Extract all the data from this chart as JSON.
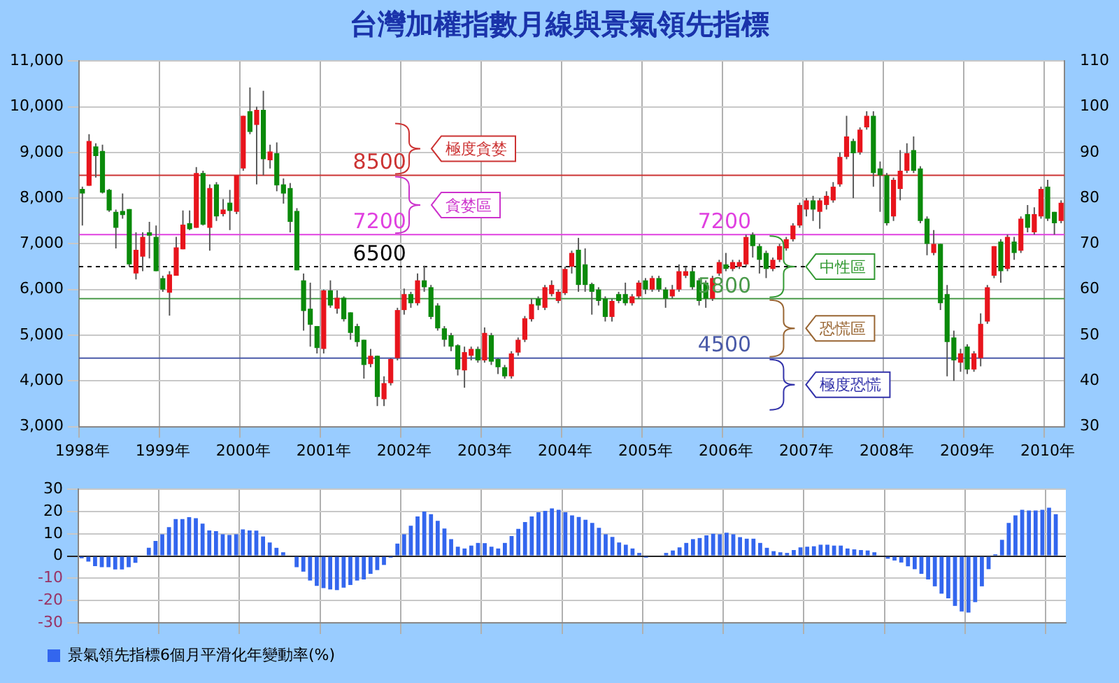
{
  "chart_data": [
    {
      "type": "candlestick",
      "title": "台灣加權指數月線與景氣領先指標",
      "categories": [
        "1998年",
        null,
        null,
        null,
        null,
        null,
        null,
        null,
        null,
        null,
        null,
        null,
        "1999年",
        null,
        null,
        null,
        null,
        null,
        null,
        null,
        null,
        null,
        null,
        null,
        "2000年",
        null,
        null,
        null,
        null,
        null,
        null,
        null,
        null,
        null,
        null,
        null,
        "2001年",
        null,
        null,
        null,
        null,
        null,
        null,
        null,
        null,
        null,
        null,
        null,
        "2002年",
        null,
        null,
        null,
        null,
        null,
        null,
        null,
        null,
        null,
        null,
        null,
        "2003年",
        null,
        null,
        null,
        null,
        null,
        null,
        null,
        null,
        null,
        null,
        null,
        "2004年",
        null,
        null,
        null,
        null,
        null,
        null,
        null,
        null,
        null,
        null,
        null,
        "2005年",
        null,
        null,
        null,
        null,
        null,
        null,
        null,
        null,
        null,
        null,
        null,
        "2006年",
        null,
        null,
        null,
        null,
        null,
        null,
        null,
        null,
        null,
        null,
        null,
        "2007年",
        null,
        null,
        null,
        null,
        null,
        null,
        null,
        null,
        null,
        null,
        null,
        "2008年",
        null,
        null,
        null,
        null,
        null,
        null,
        null,
        null,
        null,
        null,
        null,
        "2009年",
        null,
        null,
        null,
        null,
        null,
        null,
        null,
        null,
        null,
        null,
        null,
        "2010年",
        null,
        null
      ],
      "ohlc": [
        [
          8200,
          8250,
          7400,
          8100
        ],
        [
          8270,
          9400,
          8270,
          9250
        ],
        [
          9130,
          9200,
          8450,
          8920
        ],
        [
          9030,
          9170,
          8100,
          8120
        ],
        [
          8180,
          8200,
          7700,
          7730
        ],
        [
          7700,
          7750,
          6900,
          7350
        ],
        [
          7720,
          8100,
          7550,
          7630
        ],
        [
          7760,
          7760,
          6500,
          6550
        ],
        [
          6350,
          7250,
          6220,
          6870
        ],
        [
          6720,
          7250,
          6400,
          7150
        ],
        [
          7250,
          7480,
          6680,
          7180
        ],
        [
          7150,
          7400,
          6400,
          6400
        ],
        [
          6250,
          6300,
          5950,
          6000
        ],
        [
          5930,
          6400,
          5430,
          6330
        ],
        [
          6300,
          7150,
          6300,
          6920
        ],
        [
          6880,
          7730,
          6880,
          7420
        ],
        [
          7450,
          7730,
          7300,
          7320
        ],
        [
          7350,
          8680,
          7350,
          8550
        ],
        [
          8550,
          8600,
          7400,
          7420
        ],
        [
          7350,
          8300,
          6850,
          8220
        ],
        [
          8300,
          8350,
          7500,
          7600
        ],
        [
          7650,
          7980,
          7600,
          7750
        ],
        [
          7900,
          8180,
          7300,
          7720
        ],
        [
          7700,
          8500,
          7650,
          8500
        ],
        [
          8650,
          9800,
          8600,
          9800
        ],
        [
          9900,
          10420,
          9400,
          9450
        ],
        [
          9600,
          10000,
          8300,
          9930
        ],
        [
          9930,
          10350,
          8500,
          8850
        ],
        [
          8830,
          9170,
          8650,
          9020
        ],
        [
          8980,
          9220,
          8150,
          8280
        ],
        [
          8300,
          8430,
          7880,
          8100
        ],
        [
          8220,
          8330,
          7250,
          7480
        ],
        [
          7720,
          7780,
          6420,
          6420
        ],
        [
          6200,
          6350,
          5100,
          5530
        ],
        [
          5580,
          6150,
          4750,
          5230
        ],
        [
          5200,
          5200,
          4600,
          4720
        ],
        [
          4700,
          6000,
          4600,
          5980
        ],
        [
          5980,
          6200,
          5600,
          5650
        ],
        [
          5580,
          5980,
          5470,
          5820
        ],
        [
          5820,
          5850,
          5300,
          5350
        ],
        [
          5500,
          5500,
          4900,
          5050
        ],
        [
          5200,
          5250,
          4750,
          4850
        ],
        [
          4900,
          4900,
          4050,
          4350
        ],
        [
          4370,
          4700,
          4300,
          4550
        ],
        [
          4550,
          4550,
          3450,
          3650
        ],
        [
          3600,
          4100,
          3450,
          3950
        ],
        [
          3950,
          4500,
          3900,
          4480
        ],
        [
          4500,
          5600,
          4450,
          5550
        ],
        [
          5550,
          6020,
          5450,
          5900
        ],
        [
          5900,
          5950,
          5600,
          5700
        ],
        [
          5700,
          6350,
          5650,
          6200
        ],
        [
          6200,
          6520,
          5950,
          6050
        ],
        [
          6050,
          6100,
          5350,
          5400
        ],
        [
          5650,
          5700,
          5100,
          5150
        ],
        [
          5150,
          5200,
          4750,
          4900
        ],
        [
          5000,
          5050,
          4650,
          4750
        ],
        [
          4780,
          4800,
          4120,
          4250
        ],
        [
          4230,
          4750,
          3850,
          4630
        ],
        [
          4550,
          4750,
          4450,
          4700
        ],
        [
          4700,
          4750,
          4400,
          4450
        ],
        [
          4450,
          5170,
          4400,
          5050
        ],
        [
          5000,
          5050,
          4350,
          4420
        ],
        [
          4480,
          4500,
          4150,
          4300
        ],
        [
          4300,
          4350,
          4050,
          4100
        ],
        [
          4100,
          4650,
          4050,
          4600
        ],
        [
          4620,
          4950,
          4550,
          4900
        ],
        [
          4900,
          5420,
          4850,
          5370
        ],
        [
          5350,
          5800,
          5300,
          5680
        ],
        [
          5800,
          5850,
          5550,
          5650
        ],
        [
          5600,
          6100,
          5550,
          6050
        ],
        [
          5900,
          6200,
          5850,
          6100
        ],
        [
          5750,
          6000,
          5700,
          5950
        ],
        [
          5920,
          6500,
          5880,
          6450
        ],
        [
          6500,
          6850,
          6350,
          6800
        ],
        [
          6870,
          7130,
          5950,
          6100
        ],
        [
          6550,
          6900,
          5950,
          6100
        ],
        [
          6120,
          6150,
          5450,
          5950
        ],
        [
          6000,
          6050,
          5650,
          5750
        ],
        [
          5800,
          5850,
          5300,
          5400
        ],
        [
          5400,
          5800,
          5300,
          5750
        ],
        [
          5900,
          5950,
          5700,
          5750
        ],
        [
          5900,
          6150,
          5650,
          5700
        ],
        [
          5700,
          5900,
          5650,
          5850
        ],
        [
          5850,
          6200,
          5800,
          6150
        ],
        [
          6200,
          6250,
          5900,
          6000
        ],
        [
          6000,
          6300,
          5950,
          6250
        ],
        [
          6250,
          6300,
          5950,
          6000
        ],
        [
          6000,
          6050,
          5600,
          5800
        ],
        [
          5850,
          6100,
          5800,
          6000
        ],
        [
          6000,
          6550,
          5950,
          6400
        ],
        [
          6300,
          6500,
          6250,
          6400
        ],
        [
          6400,
          6500,
          6000,
          6050
        ],
        [
          6200,
          6250,
          5650,
          5750
        ],
        [
          6150,
          6200,
          5600,
          5800
        ],
        [
          5800,
          6300,
          5750,
          6250
        ],
        [
          6350,
          6650,
          6300,
          6600
        ],
        [
          6550,
          6800,
          6400,
          6450
        ],
        [
          6450,
          6650,
          6400,
          6600
        ],
        [
          6500,
          6650,
          6450,
          6600
        ],
        [
          6550,
          7200,
          6500,
          7150
        ],
        [
          7200,
          7250,
          6700,
          6950
        ],
        [
          6950,
          7000,
          6350,
          6650
        ],
        [
          6800,
          6850,
          6250,
          6450
        ],
        [
          6450,
          6700,
          6400,
          6650
        ],
        [
          6650,
          7000,
          6600,
          6950
        ],
        [
          6900,
          7150,
          6850,
          7100
        ],
        [
          7100,
          7450,
          7050,
          7400
        ],
        [
          7400,
          7900,
          7350,
          7850
        ],
        [
          7750,
          8000,
          7600,
          7950
        ],
        [
          7950,
          8050,
          7500,
          7750
        ],
        [
          7700,
          8000,
          7330,
          7950
        ],
        [
          7850,
          8150,
          7750,
          8050
        ],
        [
          7950,
          8350,
          7900,
          8250
        ],
        [
          8300,
          9000,
          8250,
          8900
        ],
        [
          8900,
          9800,
          8850,
          9350
        ],
        [
          9250,
          9300,
          8000,
          8980
        ],
        [
          9000,
          9550,
          8950,
          9500
        ],
        [
          9550,
          9900,
          9500,
          9800
        ],
        [
          9800,
          9900,
          8250,
          8550
        ],
        [
          8650,
          8800,
          7700,
          8500
        ],
        [
          8500,
          8550,
          7400,
          7450
        ],
        [
          7600,
          8450,
          7500,
          8400
        ],
        [
          8200,
          9050,
          7950,
          8600
        ],
        [
          8600,
          9200,
          8550,
          8980
        ],
        [
          9050,
          9350,
          8550,
          8600
        ],
        [
          8650,
          8700,
          7450,
          7500
        ],
        [
          7550,
          7600,
          6750,
          7000
        ],
        [
          6800,
          7300,
          6750,
          7000
        ],
        [
          7000,
          7000,
          5550,
          5700
        ],
        [
          5900,
          6100,
          4100,
          4850
        ],
        [
          4950,
          5100,
          4000,
          4450
        ],
        [
          4400,
          4700,
          4200,
          4600
        ],
        [
          4750,
          4800,
          4150,
          4250
        ],
        [
          4250,
          4650,
          4200,
          4600
        ],
        [
          4500,
          5480,
          4320,
          5250
        ],
        [
          5300,
          6100,
          5250,
          6050
        ],
        [
          6300,
          6950,
          6250,
          6950
        ],
        [
          7050,
          7100,
          6150,
          6400
        ],
        [
          6450,
          7200,
          6400,
          7150
        ],
        [
          7050,
          7150,
          6650,
          6800
        ],
        [
          6850,
          7600,
          6800,
          7550
        ],
        [
          7650,
          7850,
          7250,
          7350
        ],
        [
          7250,
          7800,
          7200,
          7650
        ],
        [
          7600,
          8250,
          7550,
          8200
        ],
        [
          8250,
          8400,
          7500,
          7550
        ],
        [
          7700,
          7700,
          7200,
          7450
        ],
        [
          7500,
          7950,
          7450,
          7900
        ]
      ],
      "ylim": [
        3000,
        11000
      ],
      "yticks": [
        {
          "value": 3000,
          "label": "3,000"
        },
        {
          "value": 4000,
          "label": "4,000"
        },
        {
          "value": 5000,
          "label": "5,000"
        },
        {
          "value": 6000,
          "label": "6,000"
        },
        {
          "value": 7000,
          "label": "7,000"
        },
        {
          "value": 8000,
          "label": "8,000"
        },
        {
          "value": 9000,
          "label": "9,000"
        },
        {
          "value": 10000,
          "label": "10,000"
        },
        {
          "value": 11000,
          "label": "11,000"
        }
      ],
      "y2lim": [
        30,
        110
      ],
      "y2ticks": [
        30,
        40,
        50,
        60,
        70,
        80,
        90,
        100,
        110
      ],
      "grid": true,
      "legend": false,
      "ref_lines": [
        {
          "axis": "y",
          "value": 8500,
          "label": "8500",
          "color": "#cc3333",
          "line_style": "solid"
        },
        {
          "axis": "y",
          "value": 7200,
          "label": "7200",
          "color": "#e040e0",
          "line_style": "solid"
        },
        {
          "axis": "y",
          "value": 6500,
          "label": "6500",
          "color": "#000000",
          "line_style": "dashed"
        },
        {
          "axis": "y",
          "value": 5800,
          "label": "5800",
          "color": "#4a9a4a",
          "line_style": "solid"
        },
        {
          "axis": "y",
          "value": 4500,
          "label": "4500",
          "color": "#4a5aa8",
          "line_style": "solid"
        }
      ],
      "annotations": [
        "極度貪婪",
        "貪婪區",
        {
          "text": "7200",
          "y": 7200
        },
        "中性區",
        "恐慌區",
        "極度恐慌"
      ]
    },
    {
      "type": "bar",
      "categories": [
        null,
        null,
        null,
        null,
        null,
        null,
        null,
        null,
        null,
        null,
        null,
        null,
        null,
        null,
        null,
        null,
        null,
        null,
        null,
        null,
        null,
        null,
        null,
        null,
        null,
        null,
        null,
        null,
        null,
        null,
        null,
        null,
        null,
        null,
        null,
        null,
        null,
        null,
        null,
        null,
        null,
        null,
        null,
        null,
        null,
        null,
        null,
        null,
        null,
        null,
        null,
        null,
        null,
        null,
        null,
        null,
        null,
        null,
        null,
        null,
        null,
        null,
        null,
        null,
        null,
        null,
        null,
        null,
        null,
        null,
        null,
        null,
        null,
        null,
        null,
        null,
        null,
        null,
        null,
        null,
        null,
        null,
        null,
        null,
        null,
        null,
        null,
        null,
        null,
        null,
        null,
        null,
        null,
        null,
        null,
        null,
        null,
        null,
        null,
        null,
        null,
        null,
        null,
        null,
        null,
        null,
        null,
        null,
        null,
        null,
        null,
        null,
        null,
        null,
        null,
        null,
        null,
        null,
        null,
        null,
        null,
        null,
        null,
        null,
        null,
        null,
        null,
        null,
        null,
        null,
        null,
        null,
        null,
        null,
        null,
        null,
        null,
        null,
        null,
        null,
        null,
        null,
        null,
        null,
        null,
        null,
        null
      ],
      "series": [
        {
          "name": "景氣領先指標6個月平滑化年變動率(%)",
          "color": "#3366ee",
          "values": [
            -1,
            -2.5,
            -4.5,
            -5,
            -5,
            -6,
            -6,
            -5,
            -3,
            0,
            3.7,
            6.8,
            9.8,
            13,
            16.6,
            16.6,
            17.5,
            17,
            14.6,
            11.5,
            11.2,
            9.8,
            9.5,
            9.8,
            12,
            11.5,
            11.4,
            8.8,
            6.1,
            3.7,
            1.7,
            null,
            -5,
            -7,
            -11,
            -13.4,
            -14.4,
            -15,
            -15.3,
            -14.2,
            -13,
            -11,
            -10.5,
            -8,
            -6.3,
            -4,
            -0.7,
            5.6,
            9.8,
            13.6,
            17.8,
            20,
            18.8,
            15.8,
            12.4,
            7.6,
            4.2,
            3.4,
            4.7,
            5.9,
            5.8,
            4.2,
            3.4,
            5.9,
            9,
            12.2,
            15.3,
            17.8,
            19.7,
            20.3,
            21.4,
            20.8,
            19.7,
            18.3,
            17.6,
            16.3,
            14.9,
            12.7,
            9.8,
            8.6,
            6.1,
            5.1,
            3.4,
            1.4,
            -0.7,
            null,
            null,
            1.4,
            2.5,
            3.9,
            5.9,
            7.6,
            8.1,
            9.3,
            10,
            9.8,
            10.5,
            9.8,
            8.5,
            7.8,
            7.8,
            5.9,
            3.7,
            2.2,
            1.7,
            1.4,
            2.7,
            3.9,
            4.2,
            4.4,
            5.1,
            5.1,
            4.7,
            4.7,
            3.4,
            3,
            2.7,
            2.5,
            1.7,
            null,
            -1.2,
            -2,
            -2.9,
            -4.6,
            -5.9,
            -8,
            -10.5,
            -13.6,
            -16.9,
            -19,
            -22.4,
            -24.9,
            -25.4,
            -20.7,
            -13.6,
            -5.9,
            0.8,
            7.3,
            14.9,
            18.3,
            20.8,
            20.5,
            20.5,
            20.8,
            21.7,
            18.8,
            null
          ]
        }
      ],
      "ylim": [
        -30,
        30
      ],
      "yticks": [
        -30,
        -20,
        -10,
        0,
        10,
        20,
        30
      ],
      "grid": true,
      "legend": "bottom left",
      "tick_labels": "y"
    }
  ]
}
